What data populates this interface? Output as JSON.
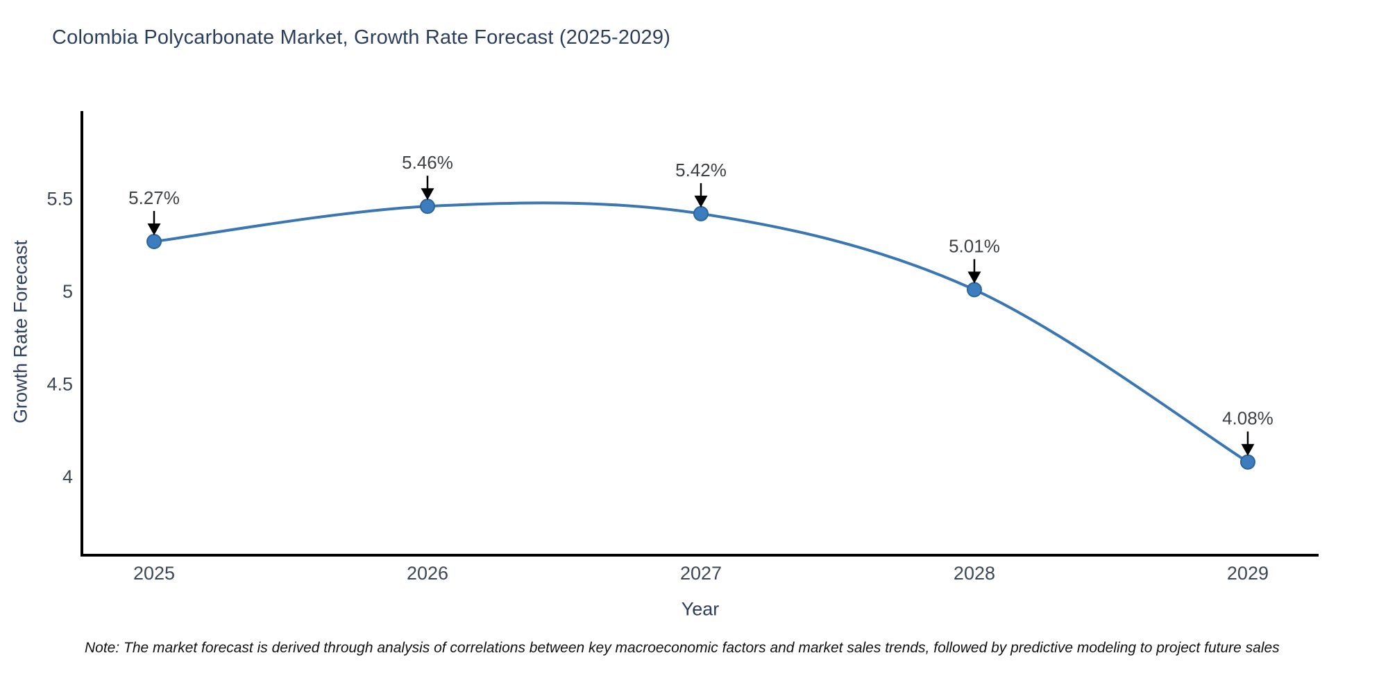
{
  "chart": {
    "title": "Colombia Polycarbonate Market, Growth Rate Forecast (2025-2029)",
    "note": "Note: The market forecast is derived through analysis of correlations between key macroeconomic factors and market sales trends, followed by predictive modeling to project future sales"
  },
  "chart_data": {
    "type": "line",
    "title": "Colombia Polycarbonate Market, Growth Rate Forecast (2025-2029)",
    "x": [
      2025,
      2026,
      2027,
      2028,
      2029
    ],
    "y": [
      5.27,
      5.46,
      5.42,
      5.01,
      4.08
    ],
    "point_labels": [
      "5.27%",
      "5.46%",
      "5.42%",
      "5.01%",
      "4.08%"
    ],
    "xlabel": "Year",
    "ylabel": "Growth Rate Forecast",
    "xticks": [
      2025,
      2026,
      2027,
      2028,
      2029
    ],
    "yticks": [
      4,
      4.5,
      5,
      5.5
    ],
    "xlim": [
      2024.736,
      2029.259
    ],
    "ylim": [
      3.577,
      5.974
    ],
    "line_shape": "spline",
    "grid": false,
    "legend": "none",
    "colors": {
      "line": "#3a76b2",
      "marker_fill": "#3c7dbd",
      "marker_edge": "#2d6499",
      "axis": "#000000",
      "tick_label": "#3d4753",
      "annotation_text": "#3d4144",
      "annotation_arrow": "#000000",
      "title": "#2c3e5d"
    }
  }
}
